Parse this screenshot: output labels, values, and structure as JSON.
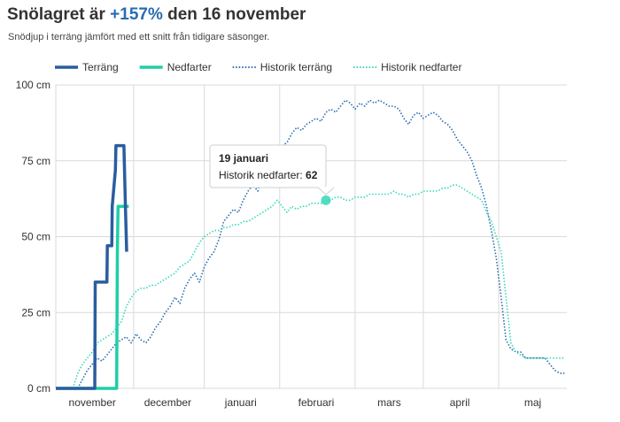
{
  "header": {
    "title_prefix": "Snölagret är ",
    "title_highlight": "+157%",
    "title_suffix": " den 16 november",
    "subtitle": "Snödjup i terräng jämfört med ett snitt från tidigare säsonger."
  },
  "tooltip": {
    "date": "19 januari",
    "label": "Historik nedfarter: ",
    "value": "62"
  },
  "colors": {
    "terrain": "#2a5d9f",
    "slopes": "#1fcfa6",
    "hist_terrain": "#2a6bb0",
    "hist_slopes": "#35d8b8",
    "grid": "#d9d9d9",
    "axis_text": "#333333"
  },
  "chart_data": {
    "type": "line",
    "title": "Snölagret är +157% den 16 november",
    "subtitle": "Snödjup i terräng jämfört med ett snitt från tidigare säsonger.",
    "ylabel": "",
    "ylim": [
      0,
      100
    ],
    "xlim": [
      0,
      210
    ],
    "y_ticks": [
      {
        "value": 0,
        "label": "0 cm"
      },
      {
        "value": 25,
        "label": "25 cm"
      },
      {
        "value": 50,
        "label": "50 cm"
      },
      {
        "value": 75,
        "label": "75 cm"
      },
      {
        "value": 100,
        "label": "100 cm"
      }
    ],
    "x_gridlines": [
      0,
      32,
      61,
      92,
      123,
      151,
      182
    ],
    "x_ticks": [
      {
        "value": 15,
        "label": "november"
      },
      {
        "value": 46,
        "label": "december"
      },
      {
        "value": 76,
        "label": "januari"
      },
      {
        "value": 107,
        "label": "februari"
      },
      {
        "value": 137,
        "label": "mars"
      },
      {
        "value": 166,
        "label": "april"
      },
      {
        "value": 196,
        "label": "maj"
      }
    ],
    "x_unit": "days since 1 October",
    "series": [
      {
        "name": "Terräng",
        "style": "solid",
        "x": [
          0,
          16,
          16.2,
          21,
          21.2,
          23,
          23.2,
          24.5,
          24.7,
          28,
          28.6,
          29.1
        ],
        "values": [
          0,
          0,
          35,
          35,
          47,
          47,
          60,
          72,
          80,
          80,
          60,
          45
        ]
      },
      {
        "name": "Nedfarter",
        "style": "solid",
        "x": [
          0,
          25,
          25.3,
          25.6,
          30
        ],
        "values": [
          0,
          0,
          45,
          60,
          60
        ]
      },
      {
        "name": "Historik terräng",
        "style": "dotted",
        "x": [
          9,
          11,
          13,
          15,
          17,
          19,
          21,
          23,
          25,
          27,
          29,
          31,
          33,
          35,
          37,
          39,
          41,
          43,
          45,
          47,
          49,
          51,
          53,
          55,
          57,
          59,
          61,
          63,
          65,
          67,
          69,
          71,
          73,
          75,
          77,
          79,
          81,
          83,
          85,
          87,
          89,
          91,
          93,
          95,
          97,
          99,
          101,
          103,
          105,
          107,
          109,
          111,
          113,
          115,
          117,
          119,
          121,
          123,
          125,
          127,
          129,
          131,
          133,
          135,
          137,
          139,
          141,
          143,
          145,
          147,
          149,
          151,
          153,
          155,
          157,
          159,
          161,
          163,
          165,
          167,
          169,
          171,
          173,
          175,
          177,
          179,
          181,
          183,
          185,
          187,
          189,
          191,
          193,
          195,
          197,
          199,
          201,
          203,
          205,
          207,
          209
        ],
        "values": [
          0,
          3,
          6,
          8,
          10,
          9,
          11,
          13,
          15,
          16,
          17,
          15,
          18,
          16,
          15,
          17,
          20,
          22,
          25,
          27,
          30,
          28,
          33,
          36,
          38,
          35,
          40,
          43,
          45,
          49,
          55,
          57,
          59,
          58,
          62,
          65,
          67,
          65,
          70,
          74,
          76,
          78,
          80,
          81,
          84,
          86,
          85,
          87,
          88,
          89,
          88,
          91,
          92,
          91,
          93,
          95,
          94,
          92,
          94,
          93,
          95,
          94,
          95,
          94,
          93,
          93,
          92,
          89,
          87,
          90,
          91,
          89,
          90,
          91,
          90,
          88,
          87,
          85,
          82,
          80,
          78,
          75,
          70,
          66,
          60,
          52,
          43,
          30,
          16,
          13,
          12,
          12,
          10,
          10,
          10,
          10,
          10,
          8,
          6,
          5,
          5
        ]
      },
      {
        "name": "Historik nedfarter",
        "style": "dotted",
        "x": [
          7,
          9,
          11,
          13,
          15,
          17,
          19,
          21,
          23,
          25,
          27,
          29,
          31,
          33,
          35,
          37,
          39,
          41,
          43,
          45,
          47,
          49,
          51,
          53,
          55,
          57,
          59,
          61,
          63,
          65,
          67,
          69,
          71,
          73,
          75,
          77,
          79,
          81,
          83,
          85,
          87,
          89,
          91,
          93,
          95,
          97,
          99,
          101,
          103,
          105,
          107,
          109,
          111,
          113,
          115,
          117,
          119,
          121,
          123,
          125,
          127,
          129,
          131,
          133,
          135,
          137,
          139,
          141,
          143,
          145,
          147,
          149,
          151,
          153,
          155,
          157,
          159,
          161,
          163,
          165,
          167,
          169,
          171,
          173,
          175,
          177,
          179,
          181,
          183,
          185,
          187,
          189,
          191,
          193,
          195,
          197,
          199,
          201,
          203,
          205,
          207,
          209
        ],
        "values": [
          0,
          5,
          8,
          10,
          12,
          15,
          16,
          17,
          18,
          20,
          22,
          27,
          30,
          32,
          33,
          33,
          34,
          34,
          35,
          36,
          37,
          38,
          40,
          41,
          42,
          45,
          48,
          50,
          51,
          52,
          52,
          53,
          53,
          54,
          54,
          55,
          55,
          56,
          57,
          58,
          59,
          60,
          62,
          60,
          58,
          60,
          59,
          60,
          60,
          61,
          61,
          61,
          62,
          62,
          63,
          63,
          62,
          62,
          63,
          63,
          63,
          64,
          64,
          64,
          64,
          64,
          65,
          64,
          64,
          63,
          64,
          64,
          65,
          65,
          65,
          65,
          66,
          66,
          67,
          67,
          66,
          65,
          64,
          63,
          62,
          58,
          55,
          50,
          45,
          30,
          15,
          12,
          11,
          10,
          10,
          10,
          10,
          10,
          10,
          10,
          10,
          10
        ]
      }
    ],
    "legend": [
      {
        "name": "Terräng",
        "style": "solid"
      },
      {
        "name": "Nedfarter",
        "style": "solid"
      },
      {
        "name": "Historik terräng",
        "style": "dotted"
      },
      {
        "name": "Historik nedfarter",
        "style": "dotted"
      }
    ],
    "legend_position": "top-left",
    "highlight_point": {
      "series": "Historik nedfarter",
      "x": 111,
      "value": 62
    },
    "grid": true
  }
}
